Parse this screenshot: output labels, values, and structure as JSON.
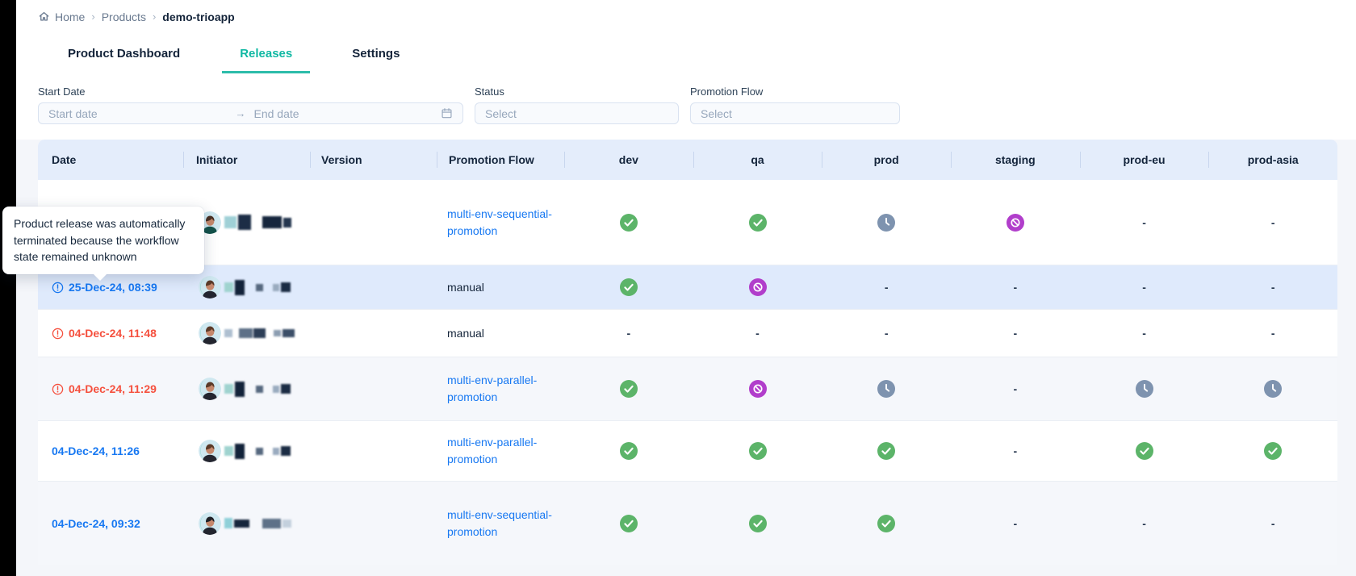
{
  "breadcrumb": {
    "separator": "›",
    "items": [
      {
        "label": "Home"
      },
      {
        "label": "Products"
      },
      {
        "label": "demo-trioapp"
      }
    ]
  },
  "tabs": [
    {
      "label": "Product Dashboard",
      "active": false
    },
    {
      "label": "Releases",
      "active": true
    },
    {
      "label": "Settings",
      "active": false
    }
  ],
  "filters": {
    "date_range": {
      "label": "Start Date",
      "start_placeholder": "Start date",
      "end_placeholder": "End date",
      "arrow": "→"
    },
    "status": {
      "label": "Status",
      "placeholder": "Select"
    },
    "promotion_flow": {
      "label": "Promotion Flow",
      "placeholder": "Select"
    }
  },
  "tooltip": {
    "text": "Product release was automatically terminated because the workflow state remained unknown"
  },
  "table": {
    "empty_value": "-",
    "columns": [
      {
        "key": "date",
        "label": "Date",
        "align": "left"
      },
      {
        "key": "initiator",
        "label": "Initiator",
        "align": "left"
      },
      {
        "key": "version",
        "label": "Version",
        "align": "left"
      },
      {
        "key": "flow",
        "label": "Promotion Flow",
        "align": "left"
      },
      {
        "key": "dev",
        "label": "dev",
        "align": "center"
      },
      {
        "key": "qa",
        "label": "qa",
        "align": "center"
      },
      {
        "key": "prod",
        "label": "prod",
        "align": "center"
      },
      {
        "key": "staging",
        "label": "staging",
        "align": "center"
      },
      {
        "key": "prod-eu",
        "label": "prod-eu",
        "align": "center"
      },
      {
        "key": "prod-asia",
        "label": "prod-asia",
        "align": "center"
      }
    ],
    "rows": [
      {
        "date": "",
        "date_style": "hidden",
        "date_icon": false,
        "initiator": "[redacted]",
        "version": "",
        "flow": "multi-env-sequential-promotion",
        "flow_is_link": true,
        "highlight": false,
        "envs": [
          "success",
          "success",
          "pending",
          "terminated",
          "dash",
          "dash"
        ]
      },
      {
        "date": "25-Dec-24, 08:39",
        "date_style": "info",
        "date_icon": true,
        "initiator": "[redacted]",
        "version": "",
        "flow": "manual",
        "flow_is_link": false,
        "highlight": true,
        "envs": [
          "success",
          "terminated",
          "dash",
          "dash",
          "dash",
          "dash"
        ]
      },
      {
        "date": "04-Dec-24, 11:48",
        "date_style": "error",
        "date_icon": true,
        "initiator": "[redacted]",
        "version": "",
        "flow": "manual",
        "flow_is_link": false,
        "highlight": false,
        "envs": [
          "dash",
          "dash",
          "dash",
          "dash",
          "dash",
          "dash"
        ]
      },
      {
        "date": "04-Dec-24, 11:29",
        "date_style": "error",
        "date_icon": true,
        "initiator": "[redacted]",
        "version": "",
        "flow": "multi-env-parallel-promotion",
        "flow_is_link": true,
        "highlight": false,
        "envs": [
          "success",
          "terminated",
          "pending",
          "dash",
          "pending",
          "pending"
        ]
      },
      {
        "date": "04-Dec-24, 11:26",
        "date_style": "info",
        "date_icon": false,
        "initiator": "[redacted]",
        "version": "",
        "flow": "multi-env-parallel-promotion",
        "flow_is_link": true,
        "highlight": false,
        "envs": [
          "success",
          "success",
          "success",
          "dash",
          "success",
          "success"
        ]
      },
      {
        "date": "04-Dec-24, 09:32",
        "date_style": "info",
        "date_icon": false,
        "initiator": "[redacted]",
        "version": "",
        "flow": "multi-env-sequential-promotion",
        "flow_is_link": true,
        "highlight": false,
        "envs": [
          "success",
          "success",
          "success",
          "dash",
          "dash",
          "dash"
        ]
      }
    ]
  },
  "colors": {
    "accent_teal": "#10b8a3",
    "link_blue": "#1778f2",
    "error_red": "#f5503e",
    "success_green": "#5cb469",
    "pending_gray": "#7e93af",
    "terminated_purple": "#b13ecb",
    "header_bg": "#e4edfb",
    "row_highlight": "#dfeafc"
  }
}
